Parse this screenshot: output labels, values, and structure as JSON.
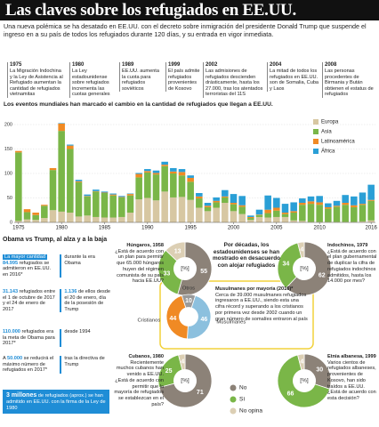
{
  "header": {
    "title": "Las claves sobre los refugiados en EE.UU.",
    "subtitle": "Una nueva polémica se ha desatado en EE.UU. con el decreto sobre inmigración del presidente Donald Trump que suspende el ingreso en a su país de todos los refugiados durante 120 días, y su entrada en vigor inmediata."
  },
  "timeline": [
    {
      "year": "1975",
      "text": "La Migración Indochina y la Ley de Asistencia al Refugiado aumentan la cantidad de refugiados vietnamitas"
    },
    {
      "year": "1980",
      "text": "La Ley estadounidense sobre refugiados incrementa las cuotas generales"
    },
    {
      "year": "1989",
      "text": "EE.UU. aumenta la cuota para refugiados soviéticos"
    },
    {
      "year": "1999",
      "text": "El país admite refugiados provenientes de Kosovo"
    },
    {
      "year": "2002",
      "text": "Las admisiones de refugiados descienden drásticamente, hasta los 27.000, tras los atentados terroristas del 11S"
    },
    {
      "year": "2004",
      "text": "La mitad de todos los refugiados en EE.UU. son de Somalia, Cuba y Laos"
    },
    {
      "year": "2008",
      "text": "Las personas procedentes de Birmania y Bután obtienen el estatus de refugiados"
    }
  ],
  "obama_trump": {
    "title": "Obama vs Trump, al alza y a la baja",
    "facts": [
      {
        "pre": "La mayor cantidad",
        "num": "84.995",
        "text": "refugiados se admitieron en EE.UU. en 2016*",
        "side": "durante la era Obama"
      },
      {
        "num": "31.143",
        "text": "refugiados entre el 1 de octubre de 2017 y el 24 de enero de 2017",
        "side_num": "1.136",
        "side": "de ellos desde el 20 de enero, día de la posesión de Trump"
      },
      {
        "num": "110.000",
        "text": "refugiados era la meta de Obama para 2017*",
        "side": "desde 1994"
      },
      {
        "pre": "A",
        "num": "50.000",
        "text": "se reducirá el máximo número de refugiados en 2017*",
        "side": "tras la directiva de Trump"
      },
      {
        "num": "3 millones",
        "text": "de refugiados (aprox.) se han admitido en EE.UU. con la firma de la Ley de 1980"
      }
    ]
  },
  "survey": {
    "title": "Por décadas, los estadounidenses se han mostrado en desacuerdo con alojar refugiados",
    "legend": [
      {
        "name": "No",
        "color": "#8c8278"
      },
      {
        "name": "Sí",
        "color": "#7ab648"
      },
      {
        "name": "No opina",
        "color": "#dccfb4"
      }
    ]
  },
  "chart_data": [
    {
      "type": "bar",
      "stacked": true,
      "title": "Los eventos mundiales han marcado el cambio en la cantidad de refugiados que llegan a EE.UU.",
      "x": [
        1975,
        1976,
        1977,
        1978,
        1979,
        1980,
        1981,
        1982,
        1983,
        1984,
        1985,
        1986,
        1987,
        1988,
        1989,
        1990,
        1991,
        1992,
        1993,
        1994,
        1995,
        1996,
        1997,
        1998,
        1999,
        2000,
        2001,
        2002,
        2003,
        2004,
        2005,
        2006,
        2007,
        2008,
        2009,
        2010,
        2011,
        2012,
        2013,
        2014,
        2015,
        2016
      ],
      "xlim": [
        1974.5,
        2016.5
      ],
      "xticks": [
        1975,
        1980,
        1985,
        1990,
        1995,
        2000,
        2005,
        2010,
        2016
      ],
      "ylim": [
        0,
        220
      ],
      "yticks": [
        0,
        50,
        100,
        150,
        200
      ],
      "grid": true,
      "legend": "right",
      "series": [
        {
          "name": "Europa",
          "color": "#d7c7a2",
          "values": [
            3,
            6,
            5,
            9,
            25,
            22,
            20,
            12,
            14,
            11,
            10,
            10,
            11,
            20,
            47,
            50,
            45,
            63,
            51,
            52,
            46,
            30,
            23,
            30,
            40,
            23,
            17,
            5,
            11,
            10,
            11,
            11,
            4,
            3,
            1,
            1,
            1,
            1,
            1,
            1,
            2,
            4
          ]
        },
        {
          "name": "Asia",
          "color": "#7ab648",
          "values": [
            140,
            15,
            10,
            25,
            82,
            165,
            130,
            70,
            39,
            52,
            50,
            45,
            40,
            35,
            45,
            52,
            53,
            52,
            49,
            44,
            37,
            19,
            8,
            11,
            11,
            14,
            15,
            4,
            4,
            9,
            13,
            6,
            16,
            33,
            37,
            35,
            27,
            31,
            35,
            30,
            34,
            40
          ]
        },
        {
          "name": "Latinoamérica",
          "color": "#f08a24",
          "values": [
            3,
            6,
            5,
            2,
            4,
            15,
            7,
            2,
            1,
            1,
            1,
            2,
            1,
            3,
            7,
            3,
            3,
            3,
            4,
            7,
            8,
            4,
            3,
            3,
            2,
            3,
            3,
            2,
            1,
            7,
            6,
            3,
            3,
            4,
            5,
            5,
            3,
            2,
            4,
            4,
            2,
            2
          ]
        },
        {
          "name": "África",
          "color": "#2a9fd6",
          "values": [
            0,
            0,
            0,
            0,
            0,
            1,
            2,
            3,
            3,
            3,
            2,
            2,
            2,
            1,
            2,
            4,
            5,
            6,
            7,
            6,
            5,
            7,
            6,
            7,
            13,
            18,
            19,
            3,
            10,
            29,
            20,
            18,
            18,
            9,
            10,
            13,
            8,
            10,
            16,
            18,
            23,
            31
          ]
        }
      ]
    },
    {
      "type": "pie",
      "title": "Húngaros, 1958",
      "question": "¿Está de acuerdo con un plan para permitir que 65.000 húngaros huyen del régimen comunista de su país hacia EE.UU?",
      "center_label": "[%]",
      "values": [
        55,
        33,
        13
      ],
      "colors": [
        "#8c8278",
        "#7ab648",
        "#dccfb4"
      ]
    },
    {
      "type": "pie",
      "title": "Indochinos, 1979",
      "question": "¿Está de acuerdo con el plan gubernamental de duplicar la cifra de refugiados indochinos admitidos, hasta los 14.000 por mes?",
      "center_label": "[%]",
      "values": [
        62,
        34,
        4
      ],
      "colors": [
        "#8c8278",
        "#7ab648",
        "#dccfb4"
      ]
    },
    {
      "type": "pie",
      "title": "Cubanos, 1980",
      "question": "Recientemente muchos cubanos han venido a EE.UU. ¿Está de acuerdo con permitir que la mayoría de refugiados se establezcan en el país?",
      "center_label": "[%]",
      "values": [
        71,
        25,
        4
      ],
      "colors": [
        "#8c8278",
        "#7ab648",
        "#dccfb4"
      ]
    },
    {
      "type": "pie",
      "title": "Etnia albanesa, 1999",
      "question": "Varios cientos de refugiados albaneses, provenientes de Kosovo, han sido traídos a EE.UU. ¿Está de acuerdo con esta decisión?",
      "center_label": "[%]",
      "values": [
        30,
        66,
        4
      ],
      "colors": [
        "#8c8278",
        "#7ab648",
        "#dccfb4"
      ]
    },
    {
      "type": "pie",
      "title": "Musulmanes por mayoría (2016)*",
      "text": "Cerca de 39.000 musulmanes refugiados ingresaron a EE.UU., siendo esta una cifra récord y superando a los cristianos por primera vez desde 2002 cuando un gran número de somalíes entraron al país",
      "categories": [
        "Otros",
        "Musulmanes",
        "Cristianos"
      ],
      "values": [
        10,
        46,
        44
      ],
      "colors": [
        "#9a9a9a",
        "#8cc0de",
        "#f08a24"
      ]
    }
  ]
}
